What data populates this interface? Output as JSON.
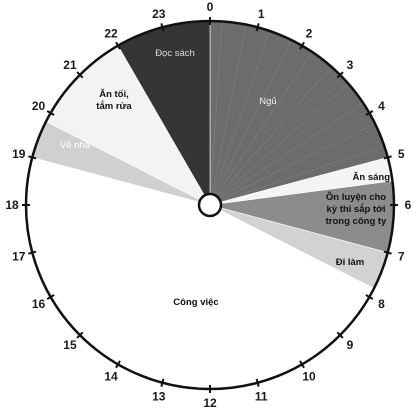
{
  "chart_data": {
    "type": "pie",
    "title": "",
    "hours": [
      "0",
      "1",
      "2",
      "3",
      "4",
      "5",
      "6",
      "7",
      "8",
      "9",
      "10",
      "11",
      "12",
      "13",
      "14",
      "15",
      "16",
      "17",
      "18",
      "19",
      "20",
      "21",
      "22",
      "23"
    ],
    "slices": [
      {
        "label": "Ngủ",
        "start": 0,
        "end": 5,
        "color": "#6c6c6c",
        "text_color": "#f2f2f2"
      },
      {
        "label": "Ăn sáng",
        "start": 5,
        "end": 5.5,
        "color": "#f4f4f4",
        "text_color": "#111111"
      },
      {
        "label": "Ôn luyện cho kỳ thi sắp tới trong công ty",
        "start": 5.5,
        "end": 7,
        "color": "#8c8c8c",
        "text_color": "#111111"
      },
      {
        "label": "Đi làm",
        "start": 7,
        "end": 7.8,
        "color": "#d2d2d2",
        "text_color": "#111111"
      },
      {
        "label": "Công việc",
        "start": 7.8,
        "end": 19,
        "color": "#ffffff",
        "text_color": "#111111"
      },
      {
        "label": "Về nhà",
        "start": 19,
        "end": 19.8,
        "color": "#d0d0d0",
        "text_color": "#ffffff"
      },
      {
        "label": "Ăn tối, tắm rửa",
        "start": 19.8,
        "end": 22,
        "color": "#f3f3f3",
        "text_color": "#111111"
      },
      {
        "label": "Đọc sách",
        "start": 22,
        "end": 24,
        "color": "#353535",
        "text_color": "#dcdcdc"
      }
    ]
  }
}
